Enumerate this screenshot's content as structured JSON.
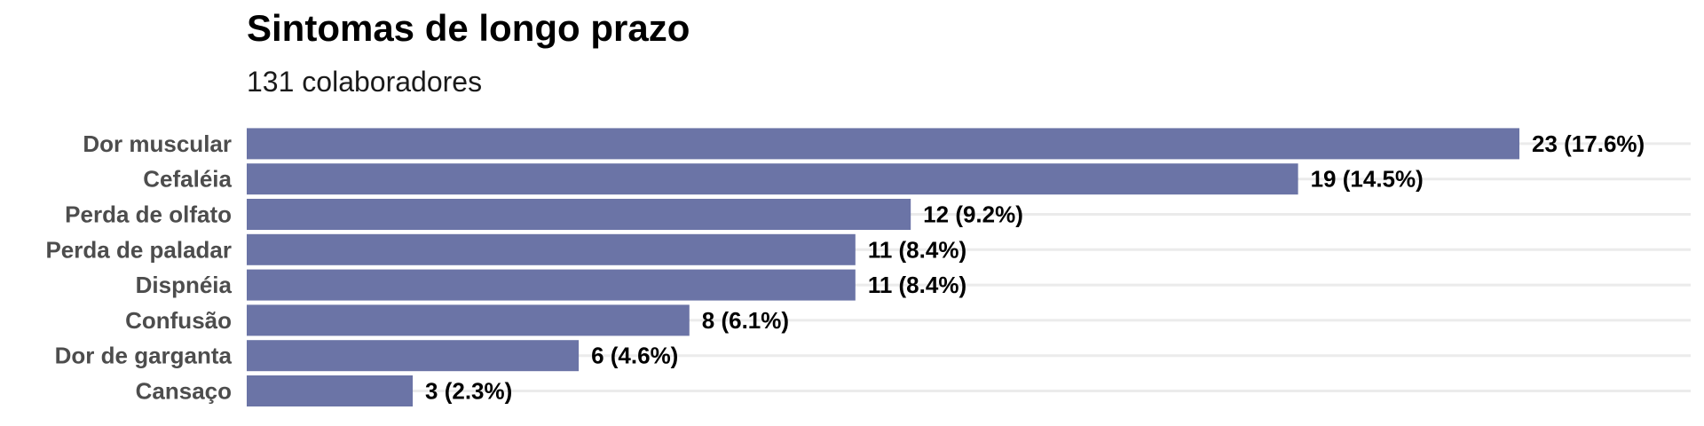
{
  "chart_data": {
    "type": "bar",
    "orientation": "horizontal",
    "title": "Sintomas de longo prazo",
    "subtitle": "131 colaboradores",
    "xlabel": "",
    "ylabel": "",
    "categories": [
      "Dor muscular",
      "Cefaléia",
      "Perda de olfato",
      "Perda de paladar",
      "Dispnéia",
      "Confusão",
      "Dor de garganta",
      "Cansaço"
    ],
    "values": [
      23,
      19,
      12,
      11,
      11,
      8,
      6,
      3
    ],
    "value_labels": [
      "23 (17.6%)",
      "19 (14.5%)",
      "12 (9.2%)",
      "11 (8.4%)",
      "11 (8.4%)",
      "8 (6.1%)",
      "6 (4.6%)",
      "3 (2.3%)"
    ],
    "xlim": [
      0,
      26
    ],
    "grid": "horizontal-major",
    "legend": "none",
    "colors": {
      "bar": "#6b74a6",
      "grid": "#ebebeb",
      "category_text": "#4d4d4d",
      "value_text": "#000000"
    }
  }
}
